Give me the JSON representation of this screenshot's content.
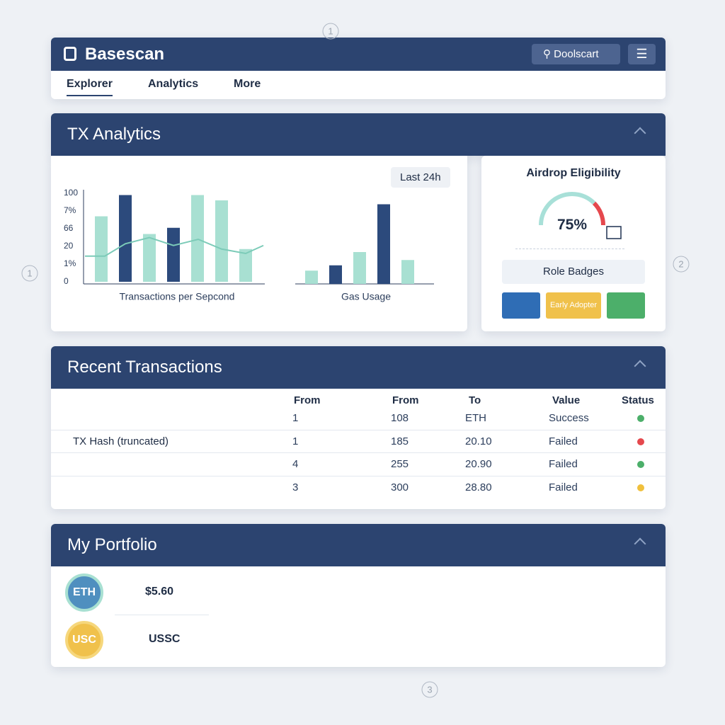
{
  "header": {
    "brand": "Basescan",
    "search": "Doolscart",
    "nav": [
      "Explorer",
      "Analytics",
      "More"
    ]
  },
  "analytics": {
    "title": "TX Analytics",
    "range": "Last 24h",
    "tps_chart": {
      "type": "bar",
      "xlabel": "Transactions per Sepcond",
      "ylim": [
        0,
        100
      ],
      "y_labels": [
        "100",
        "7%",
        "66",
        "20",
        "1%",
        "0"
      ],
      "values": [
        74,
        98,
        54,
        61,
        98,
        92,
        37
      ],
      "colors": [
        "#a8e0d2",
        "#2c4a7c",
        "#a8e0d2",
        "#2c4a7c",
        "#a8e0d2",
        "#a8e0d2",
        "#a8e0d2"
      ],
      "line": {
        "color": "#7ccbb8",
        "values": [
          29,
          29,
          43,
          50,
          41,
          48,
          37,
          32,
          41
        ]
      }
    },
    "gas_chart": {
      "type": "bar",
      "xlabel": "Gas Usage",
      "ylim": [
        0,
        100
      ],
      "values": [
        15,
        21,
        36,
        90,
        27
      ],
      "colors": [
        "#a8e0d2",
        "#2c4a7c",
        "#a8e0d2",
        "#2c4a7c",
        "#a8e0d2"
      ]
    },
    "airdrop": {
      "title": "Airdrop Eligibility",
      "value": 75,
      "value_label": "75%",
      "badges_title": "Role Badges",
      "badge": "Early Adopter"
    }
  },
  "transactions": {
    "title": "Recent Transactions",
    "columns": [
      "From",
      "From",
      "To",
      "Value",
      "Status"
    ],
    "rows": [
      {
        "cells": [
          "1",
          "108",
          "ETH",
          "Success"
        ],
        "status_color": "#4caf6a"
      },
      {
        "hash": "TX Hash (truncated)",
        "cells": [
          "1",
          "185",
          "20.10",
          "Failed"
        ],
        "status_color": "#e5484d"
      },
      {
        "cells": [
          "4",
          "255",
          "20.90",
          "Failed"
        ],
        "status_color": "#4caf6a"
      },
      {
        "cells": [
          "3",
          "300",
          "28.80",
          "Failed"
        ],
        "status_color": "#f0c03c"
      }
    ]
  },
  "portfolio": {
    "title": "My Portfolio",
    "assets": [
      {
        "icon": "ETH",
        "label": "$5.60"
      },
      {
        "icon": "USC",
        "label": "USSC"
      }
    ]
  },
  "annotations": [
    "1",
    "1",
    "2",
    "3"
  ]
}
